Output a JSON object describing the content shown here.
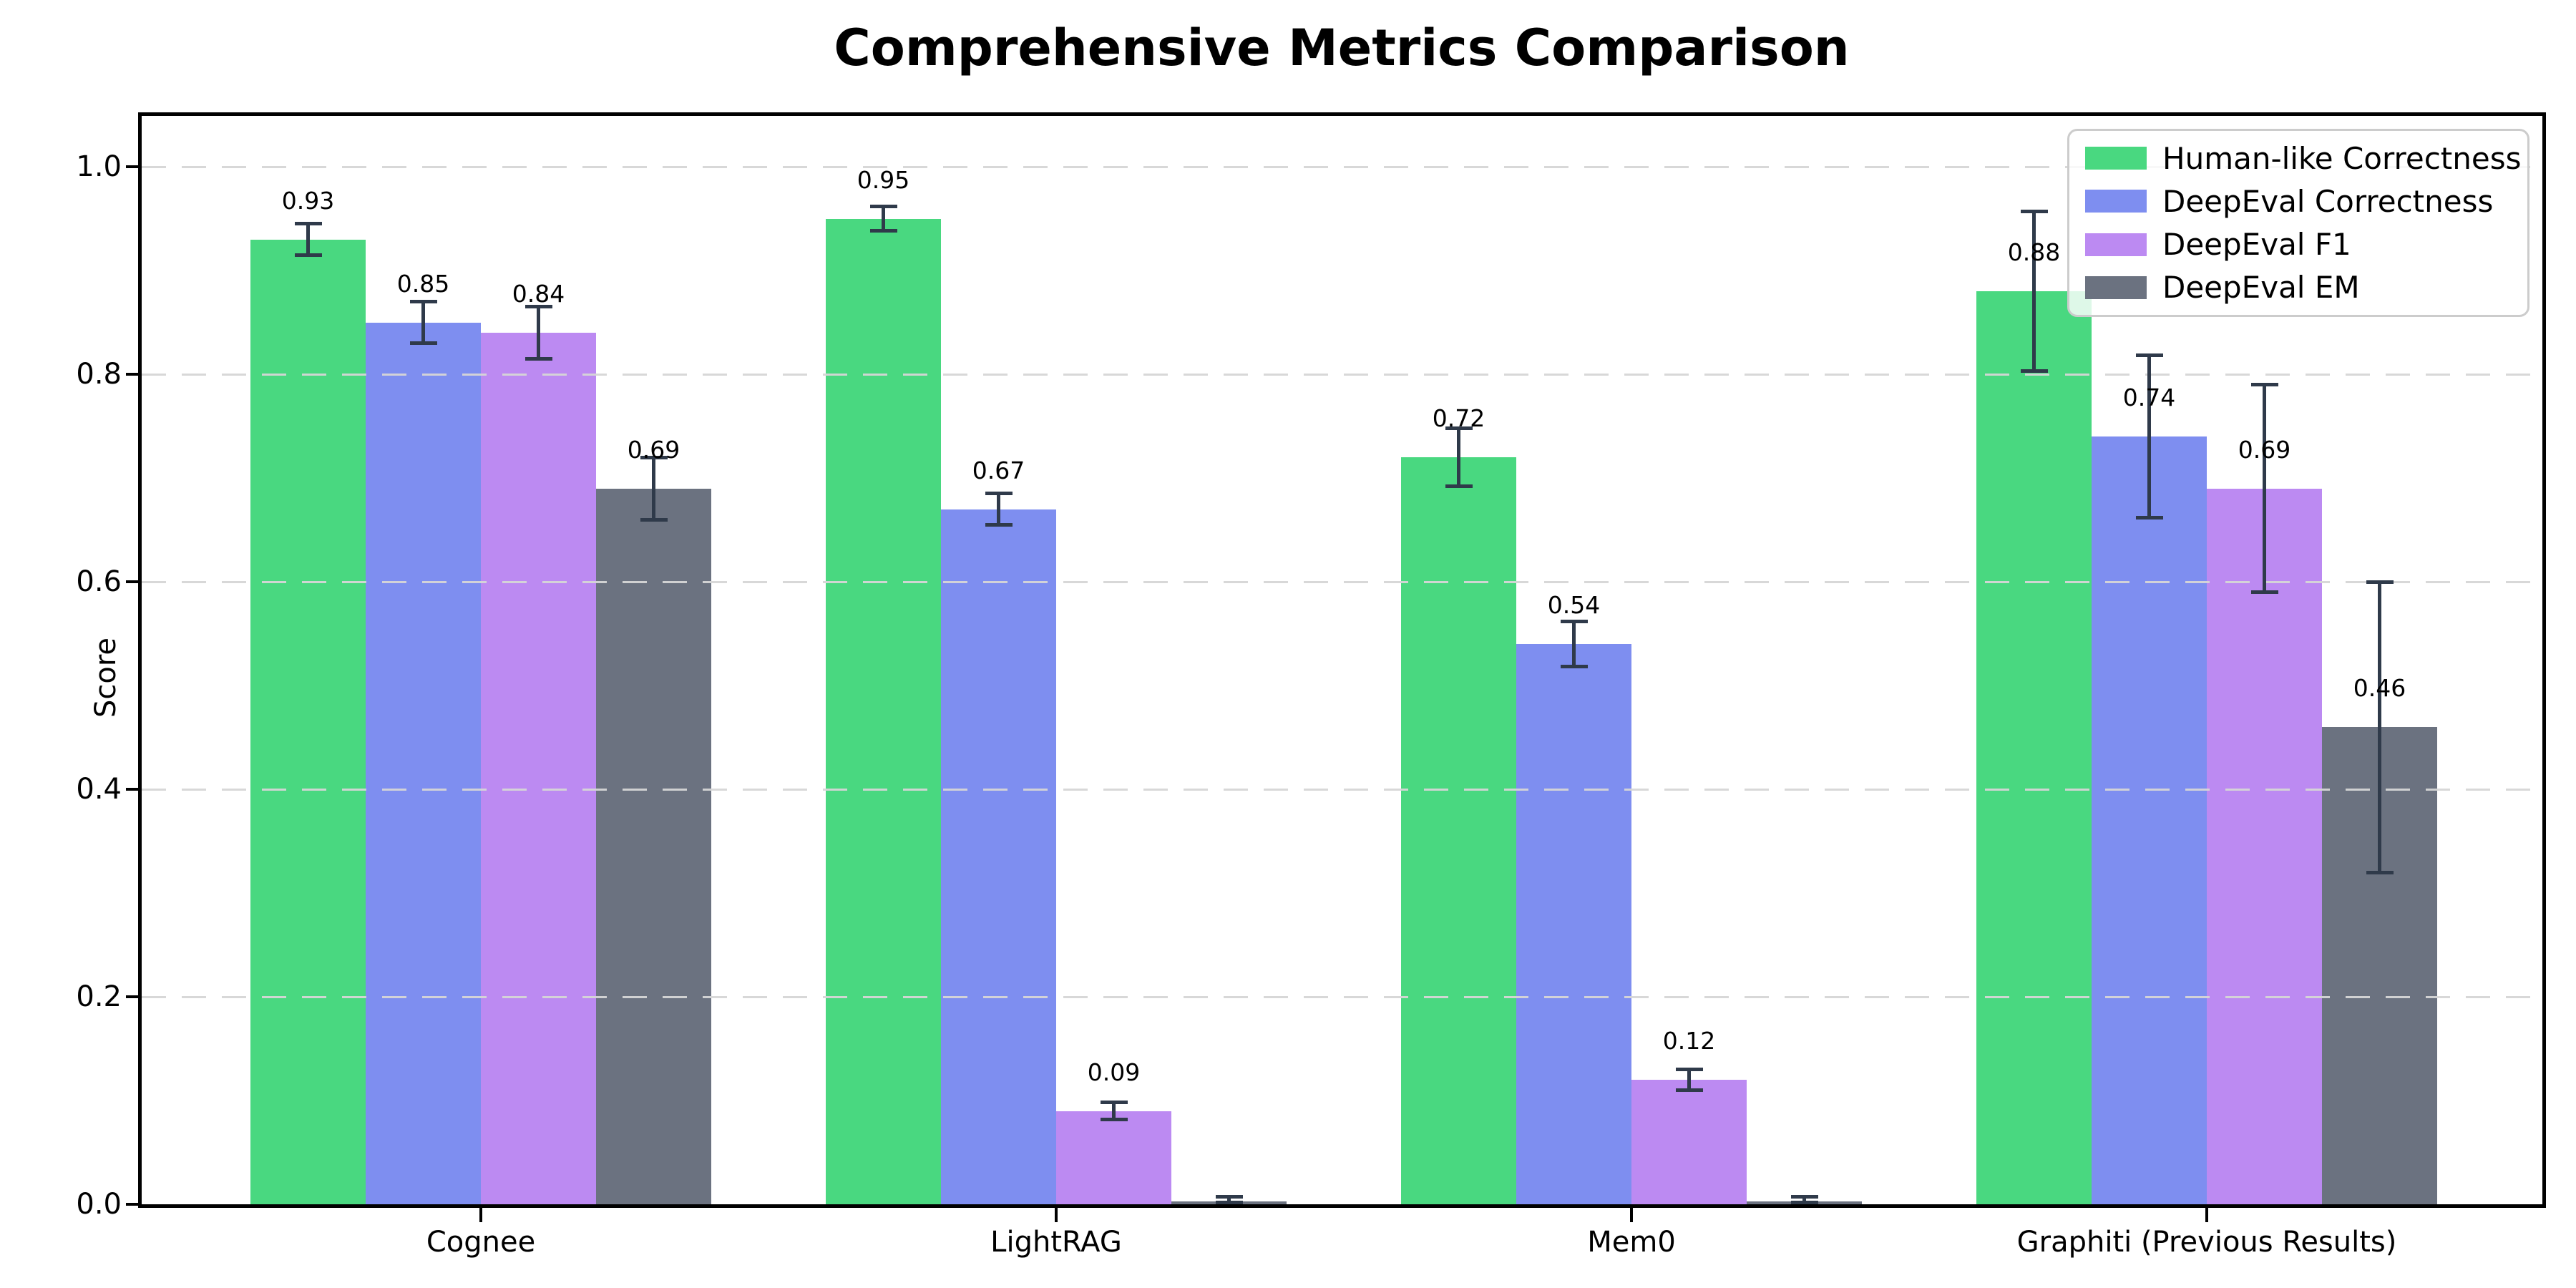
{
  "title": "Comprehensive Metrics Comparison",
  "ylabel": "Score",
  "chart_data": {
    "type": "bar",
    "title": "Comprehensive Metrics Comparison",
    "xlabel": "",
    "ylabel": "Score",
    "categories": [
      "Cognee",
      "LightRAG",
      "Mem0",
      "Graphiti (Previous Results)"
    ],
    "series": [
      {
        "name": "Human-like Correctness",
        "color": "#49D880",
        "values": [
          0.93,
          0.95,
          0.72,
          0.88
        ],
        "errors": [
          0.015,
          0.012,
          0.028,
          0.077
        ],
        "labels": [
          "0.93",
          "0.95",
          "0.72",
          "0.88"
        ]
      },
      {
        "name": "DeepEval Correctness",
        "color": "#7E8EF0",
        "values": [
          0.85,
          0.67,
          0.54,
          0.74
        ],
        "errors": [
          0.02,
          0.015,
          0.022,
          0.078
        ],
        "labels": [
          "0.85",
          "0.67",
          "0.54",
          "0.74"
        ]
      },
      {
        "name": "DeepEval F1",
        "color": "#BC8AF2",
        "values": [
          0.84,
          0.09,
          0.12,
          0.69
        ],
        "errors": [
          0.025,
          0.008,
          0.01,
          0.1
        ],
        "labels": [
          "0.84",
          "0.09",
          "0.12",
          "0.69"
        ]
      },
      {
        "name": "DeepEval EM",
        "color": "#6B7280",
        "values": [
          0.69,
          0.003,
          0.003,
          0.46
        ],
        "errors": [
          0.03,
          0.004,
          0.004,
          0.14
        ],
        "labels": [
          "0.69",
          "",
          "",
          "0.46"
        ]
      }
    ],
    "ylim": [
      0.0,
      1.05
    ],
    "yticks": [
      "0.0",
      "0.2",
      "0.4",
      "0.6",
      "0.8",
      "1.0"
    ],
    "grid": "dashed-horizontal",
    "grid_color": "#D6D6D6",
    "errorbar_color": "#2F3A4A",
    "legend_position": "upper-right",
    "background": "#FFFFFF"
  }
}
